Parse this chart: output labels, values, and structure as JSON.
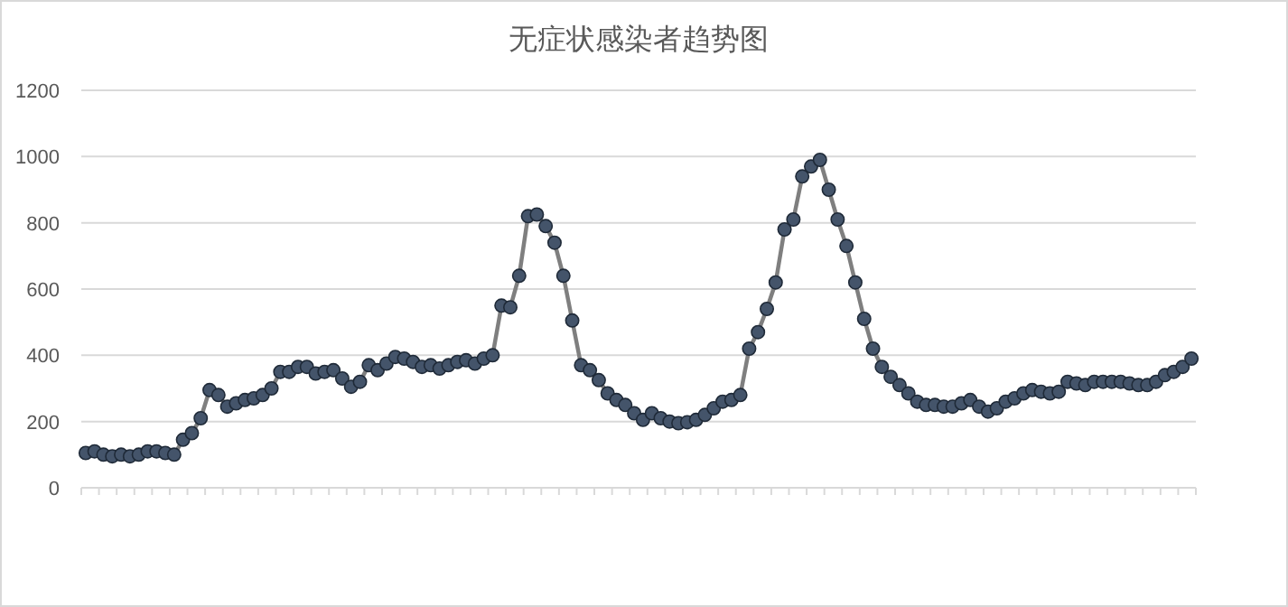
{
  "chart_data": {
    "type": "line",
    "title": "无症状感染者趋势图",
    "categories": [
      null,
      null,
      null,
      null,
      null,
      null,
      null,
      null,
      null,
      null,
      null,
      null,
      null,
      null,
      null,
      null,
      null,
      null,
      null,
      null,
      null,
      null,
      null,
      null,
      null,
      null,
      null,
      null,
      null,
      null,
      null,
      null,
      null,
      null,
      null,
      null,
      null,
      null,
      null,
      null,
      null,
      null,
      null,
      null,
      null,
      null,
      null,
      null,
      null,
      null,
      null,
      null,
      null,
      null,
      null,
      null,
      null,
      null,
      null,
      null,
      null,
      null,
      null,
      null,
      null,
      null,
      null,
      null,
      null,
      null,
      null,
      null,
      null,
      null,
      null,
      null,
      null,
      null,
      null,
      null,
      null,
      null,
      null,
      null,
      null,
      null,
      null,
      null,
      null,
      null,
      null,
      null,
      null,
      null,
      null,
      null,
      null,
      null,
      null,
      null,
      null,
      null,
      null,
      null,
      null,
      null,
      null,
      null,
      null,
      null,
      null,
      null,
      null,
      null,
      null,
      null,
      null,
      null,
      null,
      null,
      null,
      null,
      null,
      null,
      null,
      null
    ],
    "series": [
      {
        "color": "#44546a",
        "values": [
          105,
          110,
          100,
          95,
          100,
          95,
          100,
          110,
          110,
          105,
          100,
          145,
          165,
          210,
          295,
          280,
          245,
          255,
          265,
          270,
          280,
          300,
          350,
          350,
          365,
          365,
          345,
          350,
          355,
          330,
          305,
          320,
          370,
          355,
          375,
          395,
          390,
          380,
          365,
          370,
          360,
          370,
          380,
          385,
          375,
          390,
          400,
          550,
          545,
          640,
          820,
          825,
          790,
          740,
          640,
          505,
          370,
          355,
          325,
          285,
          265,
          250,
          225,
          205,
          225,
          210,
          200,
          195,
          198,
          205,
          220,
          240,
          260,
          265,
          280,
          420,
          470,
          540,
          620,
          780,
          810,
          940,
          970,
          990,
          900,
          810,
          730,
          620,
          510,
          420,
          365,
          335,
          310,
          285,
          260,
          250,
          250,
          245,
          245,
          255,
          265,
          245,
          230,
          240,
          260,
          270,
          285,
          295,
          290,
          285,
          290,
          320,
          315,
          310,
          320,
          320,
          320,
          320,
          315,
          310,
          310,
          320,
          340,
          350,
          365,
          390
        ]
      }
    ],
    "ylim": [
      0,
      1200
    ],
    "yticks": [
      0,
      200,
      400,
      600,
      800,
      1000,
      1200
    ],
    "grid": "y",
    "marker": "circle",
    "line_style": "solid"
  }
}
